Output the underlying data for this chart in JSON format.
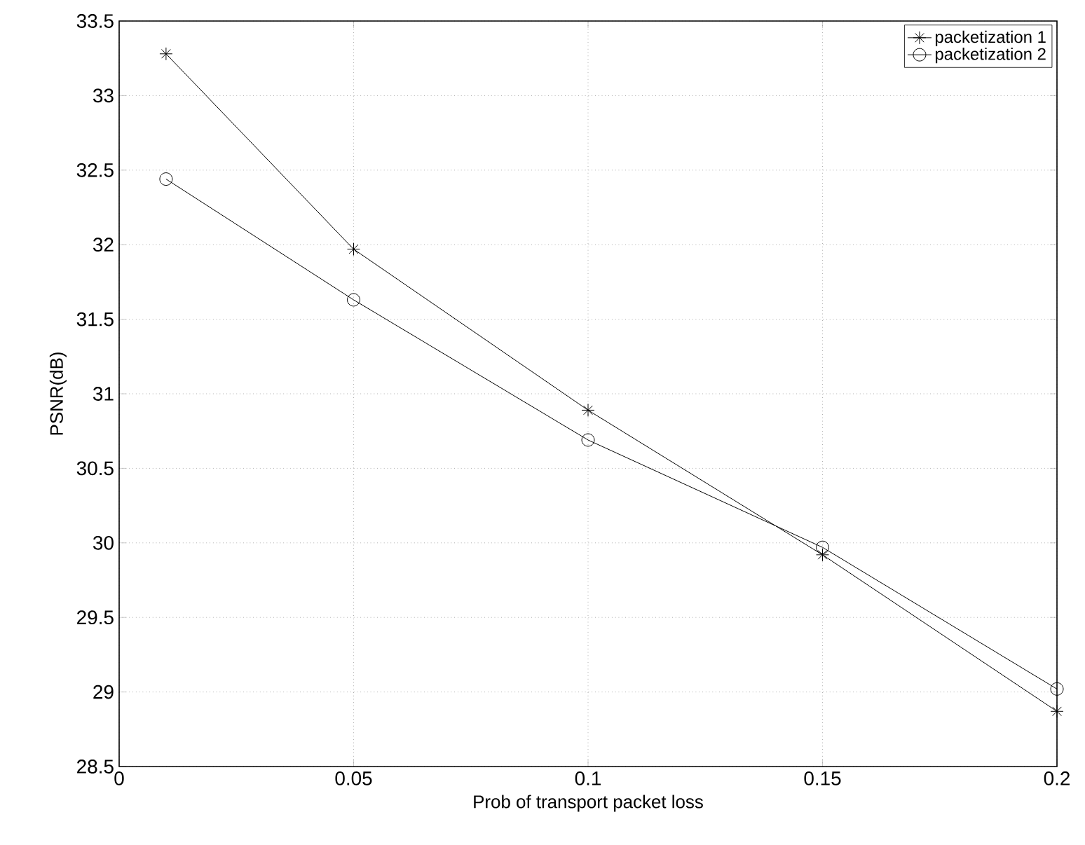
{
  "chart_data": {
    "type": "line",
    "xlabel": "Prob of transport packet loss",
    "ylabel": "PSNR(dB)",
    "x": [
      0.01,
      0.05,
      0.1,
      0.15,
      0.2
    ],
    "series": [
      {
        "name": "packetization 1",
        "color": "#000000",
        "marker": "cross",
        "values": [
          33.28,
          31.97,
          30.89,
          29.92,
          28.87
        ]
      },
      {
        "name": "packetization 2",
        "color": "#000000",
        "marker": "circle",
        "values": [
          32.44,
          31.63,
          30.69,
          29.97,
          29.02
        ]
      }
    ],
    "xlim": [
      0,
      0.2
    ],
    "ylim": [
      28.5,
      33.5
    ],
    "xticks": [
      0,
      0.05,
      0.1,
      0.15,
      0.2
    ],
    "yticks": [
      28.5,
      29,
      29.5,
      30,
      30.5,
      31,
      31.5,
      32,
      32.5,
      33,
      33.5
    ],
    "grid": true,
    "legend": "top right",
    "line_style": "solid"
  }
}
